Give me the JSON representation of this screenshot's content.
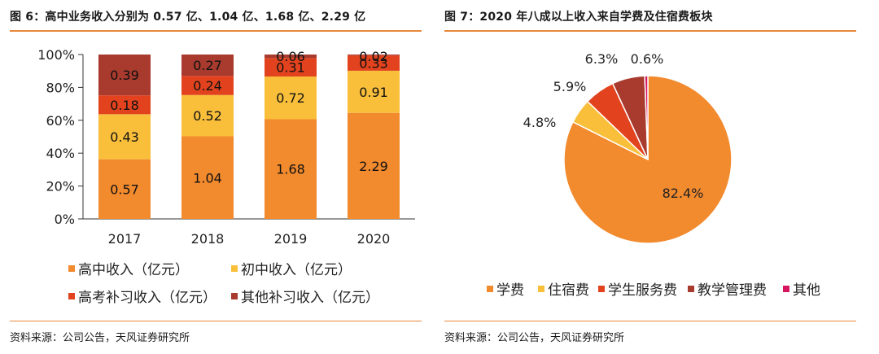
{
  "left": {
    "figure_title": "图 6：高中业务收入分别为 0.57 亿、1.04 亿、1.68 亿、2.29 亿",
    "source": "资料来源：公司公告，天风证券研究所"
  },
  "right": {
    "figure_title": "图 7：2020 年八成以上收入来自学费及住宿费板块",
    "source": "资料来源：公司公告，天风证券研究所"
  },
  "chart_data": [
    {
      "type": "bar",
      "stacked": true,
      "normalized": "percent",
      "title": "",
      "categories": [
        "2017",
        "2018",
        "2019",
        "2020"
      ],
      "y_ticks": [
        "0%",
        "20%",
        "40%",
        "60%",
        "80%",
        "100%"
      ],
      "ylim": [
        0,
        100
      ],
      "series": [
        {
          "name": "高中收入（亿元）",
          "color": "#f28a2e",
          "values": [
            0.57,
            1.04,
            1.68,
            2.29
          ]
        },
        {
          "name": "初中收入（亿元）",
          "color": "#f9bf3b",
          "values": [
            0.43,
            0.52,
            0.72,
            0.91
          ]
        },
        {
          "name": "高考补习收入（亿元）",
          "color": "#e2431e",
          "values": [
            0.18,
            0.24,
            0.31,
            0.33
          ]
        },
        {
          "name": "其他补习收入（亿元）",
          "color": "#a83a2e",
          "values": [
            0.39,
            0.27,
            0.06,
            0.02
          ]
        }
      ],
      "legend_position": "bottom"
    },
    {
      "type": "pie",
      "title": "",
      "slices": [
        {
          "name": "学费",
          "value": 82.4,
          "label": "82.4%",
          "color": "#f28a2e"
        },
        {
          "name": "住宿费",
          "value": 4.8,
          "label": "4.8%",
          "color": "#f9bf3b"
        },
        {
          "name": "学生服务费",
          "value": 5.9,
          "label": "5.9%",
          "color": "#e2431e"
        },
        {
          "name": "教学管理费",
          "value": 6.3,
          "label": "6.3%",
          "color": "#a83a2e"
        },
        {
          "name": "其他",
          "value": 0.6,
          "label": "0.6%",
          "color": "#d6155f"
        }
      ],
      "legend_position": "bottom"
    }
  ]
}
